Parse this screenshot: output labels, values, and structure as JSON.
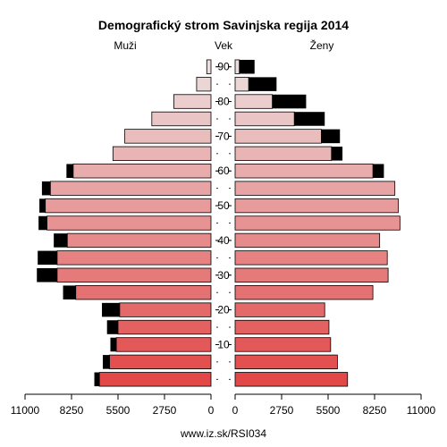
{
  "chart_data": {
    "type": "bar",
    "title": "Demografický strom Savinjska regija 2014",
    "left_label": "Muži",
    "center_label": "Vek",
    "right_label": "Ženy",
    "source": "www.iz.sk/RSI034",
    "x_ticks_left": [
      "11000",
      "8250",
      "5500",
      "2750",
      "0"
    ],
    "x_ticks_right": [
      "0",
      "2750",
      "5500",
      "8250",
      "11000"
    ],
    "y_ticks": [
      "10",
      "20",
      "30",
      "40",
      "50",
      "60",
      "70",
      "80",
      "90"
    ],
    "xlim": [
      0,
      11000
    ],
    "age_groups": [
      "0-4",
      "5-9",
      "10-14",
      "15-19",
      "20-24",
      "25-29",
      "30-34",
      "35-39",
      "40-44",
      "45-49",
      "50-54",
      "55-59",
      "60-64",
      "65-69",
      "70-74",
      "75-79",
      "80-84",
      "85-89",
      "90+"
    ],
    "series": [
      {
        "name": "Muži",
        "values": [
          6600,
          6000,
          5600,
          5500,
          5400,
          8000,
          9100,
          9100,
          8500,
          9700,
          9800,
          9500,
          8150,
          5800,
          5100,
          3500,
          2200,
          850,
          250
        ],
        "excess": [
          300,
          400,
          350,
          650,
          1050,
          750,
          1200,
          1150,
          800,
          500,
          350,
          500,
          400,
          0,
          0,
          0,
          0,
          0,
          0
        ]
      },
      {
        "name": "Ženy",
        "values": [
          6650,
          6050,
          5650,
          5550,
          5300,
          8150,
          9050,
          9000,
          8550,
          9750,
          9650,
          9450,
          8150,
          5700,
          5100,
          3500,
          2200,
          800,
          250
        ],
        "excess": [
          0,
          0,
          0,
          0,
          0,
          0,
          0,
          0,
          0,
          0,
          0,
          0,
          650,
          650,
          1100,
          1800,
          2000,
          1650,
          900
        ]
      }
    ]
  }
}
